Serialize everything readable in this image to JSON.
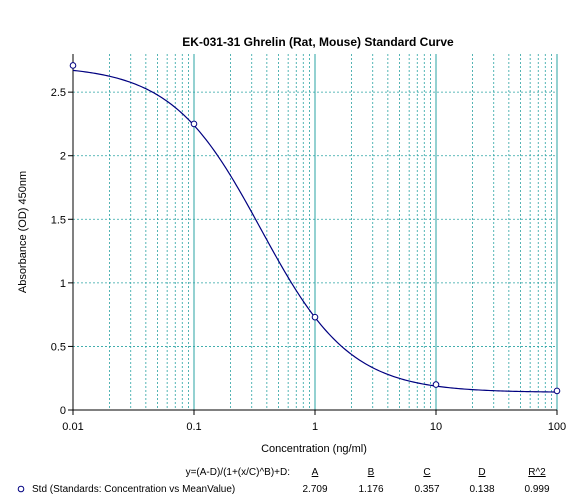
{
  "chart_data": {
    "type": "scatter",
    "title": "EK-031-31 Ghrelin (Rat, Mouse) Standard Curve",
    "xlabel": "Concentration (ng/ml)",
    "ylabel": "Absorbance (OD) 450nm",
    "x_scale": "log",
    "xlim": [
      0.01,
      100
    ],
    "ylim": [
      0,
      2.8
    ],
    "x_ticks": [
      "0.01",
      "0.1",
      "1",
      "10",
      "100"
    ],
    "y_ticks": [
      "0",
      "0.5",
      "1",
      "1.5",
      "2",
      "2.5"
    ],
    "grid": "x-minor-log",
    "series": [
      {
        "name": "Std (Standards: Concentration vs MeanValue)",
        "points": [
          {
            "x": 0.01,
            "y": 2.71
          },
          {
            "x": 0.1,
            "y": 2.25
          },
          {
            "x": 1,
            "y": 0.73
          },
          {
            "x": 10,
            "y": 0.2
          },
          {
            "x": 100,
            "y": 0.15
          }
        ]
      }
    ],
    "fit": {
      "equation": "y=(A-D)/(1+(x/C)^B)+D:",
      "headers": [
        "A",
        "B",
        "C",
        "D",
        "R^2"
      ],
      "A": 2.709,
      "B": 1.176,
      "C": 0.357,
      "D": 0.138,
      "values": [
        "2.709",
        "1.176",
        "0.357",
        "0.138",
        "0.999"
      ]
    },
    "colors": {
      "curve": "#000080",
      "points": "#000080",
      "grid": "#2aa3a3",
      "axis": "#000000"
    }
  }
}
